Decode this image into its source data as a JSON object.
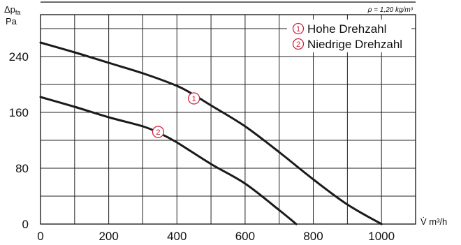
{
  "chart_data": {
    "type": "line",
    "density_note": "ρ = 1,20 kg/m³",
    "ylabel_symbol": "Δp",
    "ylabel_sub": "fa",
    "ylabel_unit": "Pa",
    "xlabel": "V̇ m³/h",
    "xlim": [
      0,
      1100
    ],
    "ylim": [
      0,
      300
    ],
    "x_ticks": [
      0,
      200,
      400,
      600,
      800,
      1000
    ],
    "y_ticks": [
      0,
      80,
      160,
      240
    ],
    "x_grid_step": 100,
    "y_grid_step": 40,
    "grid": true,
    "legend_position": "top-right",
    "marker_color": "#d4213d",
    "series": [
      {
        "name": "Hohe Drehzahl",
        "marker": "①",
        "marker_at": [
          450,
          180
        ],
        "x": [
          0,
          100,
          200,
          300,
          400,
          450,
          500,
          600,
          700,
          800,
          900,
          1000
        ],
        "y": [
          260,
          246,
          231,
          216,
          198,
          185,
          170,
          140,
          103,
          64,
          28,
          0
        ]
      },
      {
        "name": "Niedrige Drehzahl",
        "marker": "②",
        "marker_at": [
          345,
          132
        ],
        "x": [
          0,
          100,
          200,
          300,
          350,
          400,
          500,
          600,
          700,
          750
        ],
        "y": [
          182,
          168,
          153,
          140,
          130,
          117,
          86,
          58,
          20,
          0
        ]
      }
    ]
  }
}
